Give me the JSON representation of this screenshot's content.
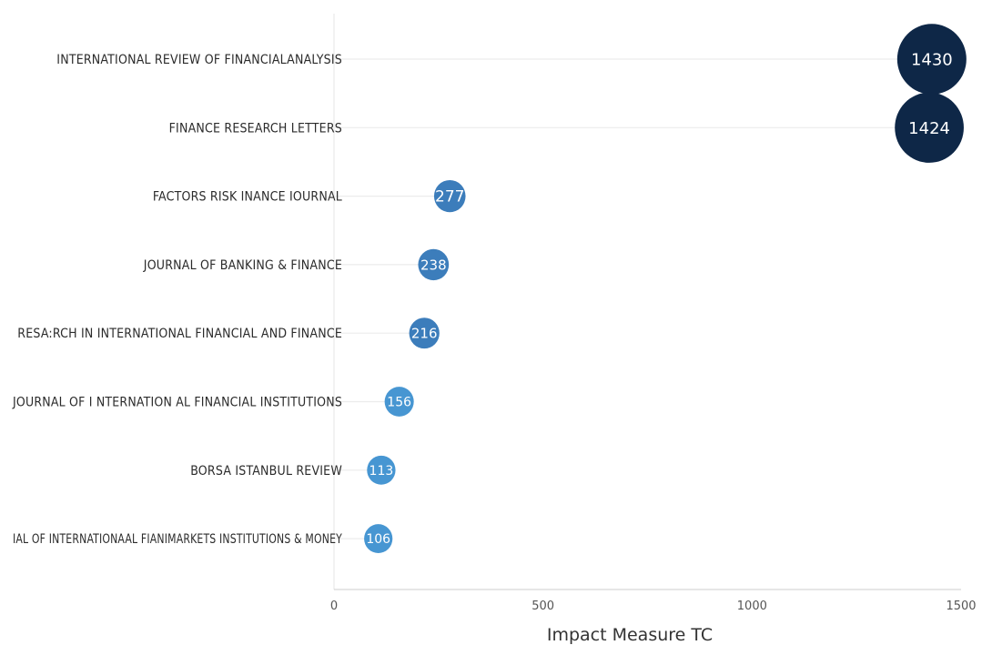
{
  "chart_data": {
    "type": "scatter",
    "subtype": "lollipop-bubble",
    "title": "",
    "xlabel": "Impact Measure TC",
    "ylabel": "",
    "xlim": [
      0,
      1500
    ],
    "xticks": [
      "0",
      "500",
      "1000",
      "1500"
    ],
    "grid": false,
    "categories": [
      "INTERNATIONAL REVIEW OF FINANCIALANALYSIS",
      "FINANCE RESEARCH LETTERS",
      "FACTORS RISK INANCE IOURNAL",
      "JOURNAL OF BANKING & FINANCE",
      "RESA:RCH IN INTERNATIONAL FINANCIAL AND FINANCE",
      "JOURNAL OF I NTERNATION AL FINANCIAL INSTITUTIONS",
      "BORSA ISTANBUL REVIEW",
      "IAL OF INTERNATIONAAL FIANIMARKETS INSTITUTIONS & MONEY"
    ],
    "values": [
      1430,
      1424,
      277,
      238,
      216,
      156,
      113,
      106
    ],
    "data_labels": [
      "1430",
      "1424",
      "277",
      "238",
      "216",
      "156",
      "113",
      "106"
    ],
    "colors": [
      "#0e2747",
      "#0e2747",
      "#3c7dbb",
      "#3c7dbb",
      "#3c7dbb",
      "#4796d2",
      "#4796d2",
      "#4796d2"
    ]
  }
}
